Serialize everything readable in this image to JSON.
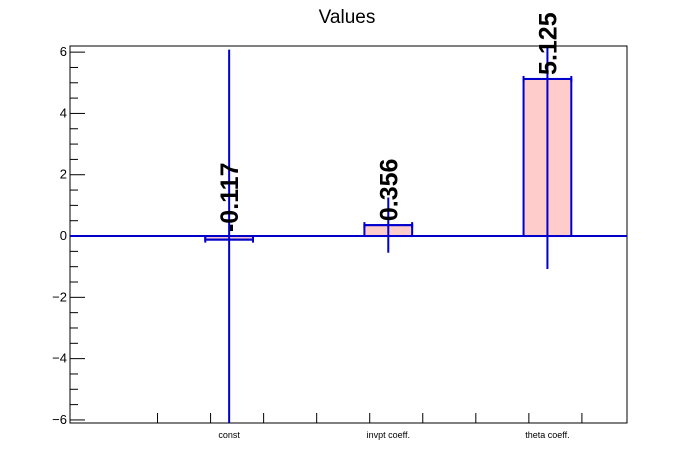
{
  "chart_data": {
    "type": "bar",
    "title": "Values",
    "xlabel": "",
    "ylabel": "",
    "categories": [
      "const",
      "invpt coeff.",
      "theta coeff."
    ],
    "values": [
      -0.117,
      0.356,
      5.125
    ],
    "value_labels": [
      "-0.117",
      "0.356",
      "5.125"
    ],
    "errors": [
      6.2,
      0.9,
      6.2
    ],
    "ylim": [
      -6.1,
      6.2
    ],
    "yticks": [
      {
        "value": -6,
        "label": "−6"
      },
      {
        "value": -4,
        "label": "−4"
      },
      {
        "value": -2,
        "label": "−2"
      },
      {
        "value": 0,
        "label": "0"
      },
      {
        "value": 2,
        "label": "2"
      },
      {
        "value": 4,
        "label": "4"
      },
      {
        "value": 6,
        "label": "6"
      }
    ],
    "grid": false,
    "legend": "none",
    "colors": {
      "bar_fill": "#ffcccc",
      "bar_stroke": "#0000cc",
      "error": "#0000cc",
      "axis": "#000000"
    }
  }
}
